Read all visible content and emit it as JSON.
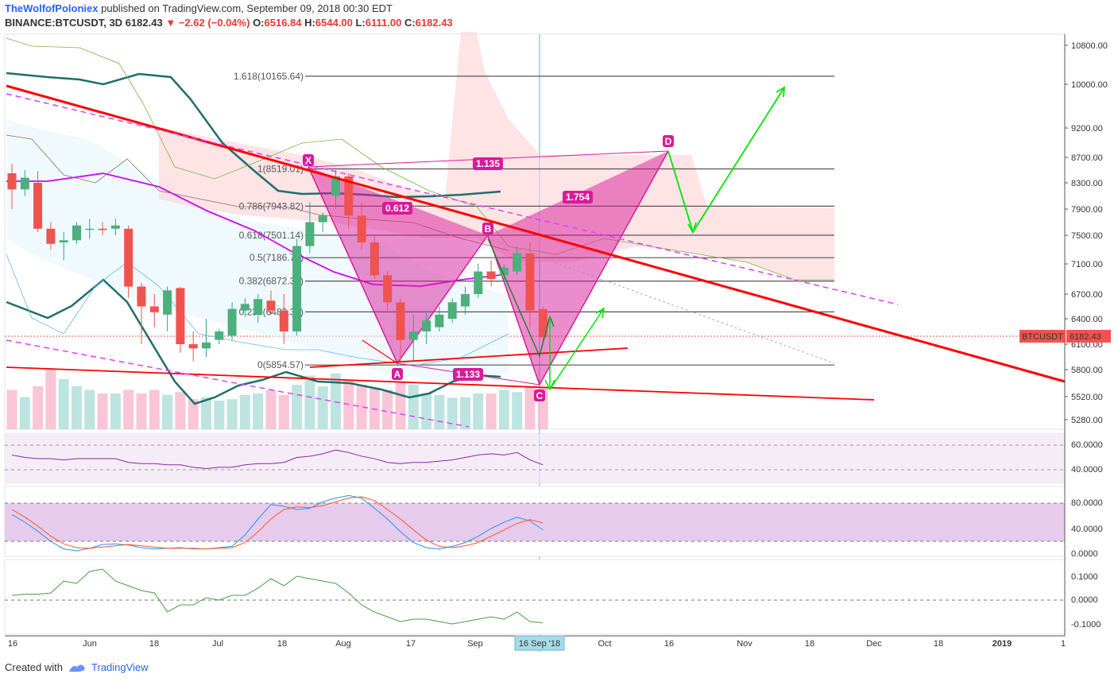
{
  "header": {
    "author": "TheWolfofPoloniex",
    "published_text": "published on TradingView.com, September 09, 2018 00:30 EDT",
    "symbol": "BINANCE:BTCUSDT, 3D",
    "last": "6182.43",
    "change": "−2.62 (−0.04%)",
    "open_label": "O:",
    "open": "6516.84",
    "high_label": "H:",
    "high": "6544.00",
    "low_label": "L:",
    "low": "6111.00",
    "close_label": "C:",
    "close": "6182.43"
  },
  "footer": {
    "created_with": "Created with",
    "brand": "TradingView"
  },
  "colors": {
    "up": "#26a69a",
    "down": "#ef5350",
    "pattern": "#d81b9a",
    "trend": "#ff0000",
    "arrow": "#00e600"
  },
  "chart_data": {
    "type": "candlestick",
    "price_ticks": [
      "10800.00",
      "10000.00",
      "9200.00",
      "8700.00",
      "8300.00",
      "7900.00",
      "7500.00",
      "7100.00",
      "6700.00",
      "6400.00",
      "6100.00",
      "5800.00",
      "5520.00",
      "5280.00"
    ],
    "price_tick_values": [
      10800,
      10000,
      9200,
      8700,
      8300,
      7900,
      7500,
      7100,
      6700,
      6400,
      6100,
      5800,
      5520,
      5280
    ],
    "current_price_label": "BTCUSDT",
    "current_price": "6182.43",
    "x_ticks": [
      "16",
      "Jun",
      "18",
      "Jul",
      "18",
      "Aug",
      "17",
      "Sep",
      "Oct",
      "16",
      "Nov",
      "18",
      "Dec",
      "18",
      "2019",
      "1"
    ],
    "x_cursor_label": "16 Sep '18",
    "candles": [
      {
        "o": 8450,
        "h": 8600,
        "l": 7900,
        "c": 8200
      },
      {
        "o": 8200,
        "h": 8500,
        "l": 8100,
        "c": 8380
      },
      {
        "o": 8300,
        "h": 8480,
        "l": 7550,
        "c": 7600
      },
      {
        "o": 7600,
        "h": 7700,
        "l": 7300,
        "c": 7380
      },
      {
        "o": 7400,
        "h": 7550,
        "l": 7150,
        "c": 7430
      },
      {
        "o": 7430,
        "h": 7700,
        "l": 7380,
        "c": 7650
      },
      {
        "o": 7600,
        "h": 7750,
        "l": 7450,
        "c": 7600
      },
      {
        "o": 7600,
        "h": 7700,
        "l": 7500,
        "c": 7580
      },
      {
        "o": 7600,
        "h": 7750,
        "l": 7500,
        "c": 7650
      },
      {
        "o": 7600,
        "h": 7650,
        "l": 6650,
        "c": 6800
      },
      {
        "o": 6800,
        "h": 6850,
        "l": 6100,
        "c": 6550
      },
      {
        "o": 6550,
        "h": 6700,
        "l": 6300,
        "c": 6480
      },
      {
        "o": 6450,
        "h": 6800,
        "l": 6250,
        "c": 6750
      },
      {
        "o": 6780,
        "h": 6800,
        "l": 6000,
        "c": 6100
      },
      {
        "o": 6100,
        "h": 6250,
        "l": 5900,
        "c": 6050
      },
      {
        "o": 6050,
        "h": 6400,
        "l": 5950,
        "c": 6120
      },
      {
        "o": 6150,
        "h": 6280,
        "l": 6100,
        "c": 6250
      },
      {
        "o": 6200,
        "h": 6600,
        "l": 6150,
        "c": 6520
      },
      {
        "o": 6500,
        "h": 6650,
        "l": 6420,
        "c": 6580
      },
      {
        "o": 6450,
        "h": 6700,
        "l": 6350,
        "c": 6640
      },
      {
        "o": 6620,
        "h": 6750,
        "l": 6450,
        "c": 6500
      },
      {
        "o": 6500,
        "h": 6700,
        "l": 6100,
        "c": 6250
      },
      {
        "o": 6250,
        "h": 7450,
        "l": 6200,
        "c": 7350
      },
      {
        "o": 7350,
        "h": 8000,
        "l": 7250,
        "c": 7700
      },
      {
        "o": 7700,
        "h": 7850,
        "l": 7550,
        "c": 7800
      },
      {
        "o": 8100,
        "h": 8500,
        "l": 7900,
        "c": 8400
      },
      {
        "o": 8400,
        "h": 8450,
        "l": 7600,
        "c": 7800
      },
      {
        "o": 7800,
        "h": 8000,
        "l": 7300,
        "c": 7400
      },
      {
        "o": 7400,
        "h": 7500,
        "l": 6900,
        "c": 6950
      },
      {
        "o": 6950,
        "h": 7000,
        "l": 6500,
        "c": 6600
      },
      {
        "o": 6600,
        "h": 6650,
        "l": 5900,
        "c": 6150
      },
      {
        "o": 6150,
        "h": 6450,
        "l": 5900,
        "c": 6250
      },
      {
        "o": 6250,
        "h": 6500,
        "l": 6100,
        "c": 6380
      },
      {
        "o": 6300,
        "h": 6550,
        "l": 6250,
        "c": 6450
      },
      {
        "o": 6400,
        "h": 6650,
        "l": 6350,
        "c": 6600
      },
      {
        "o": 6550,
        "h": 6800,
        "l": 6450,
        "c": 6700
      },
      {
        "o": 6700,
        "h": 7100,
        "l": 6650,
        "c": 7000
      },
      {
        "o": 7000,
        "h": 7150,
        "l": 6800,
        "c": 6900
      },
      {
        "o": 6950,
        "h": 7100,
        "l": 6850,
        "c": 7050
      },
      {
        "o": 7000,
        "h": 7350,
        "l": 6950,
        "c": 7250
      },
      {
        "o": 7250,
        "h": 7400,
        "l": 6300,
        "c": 6500
      },
      {
        "o": 6516.84,
        "h": 6544,
        "l": 6111,
        "c": 6182.43
      }
    ],
    "fib_levels": [
      {
        "label": "1.618(10165.64)",
        "price": 10165.64
      },
      {
        "label": "1(8519.01)",
        "price": 8519.01
      },
      {
        "label": "0.786(7943.82)",
        "price": 7943.82
      },
      {
        "label": "0.618(7501.14)",
        "price": 7501.14
      },
      {
        "label": "0.5(7186.79)",
        "price": 7186.79
      },
      {
        "label": "0.382(6872.38)",
        "price": 6872.38
      },
      {
        "label": "0.236(6483.38)",
        "price": 6483.38
      },
      {
        "label": "0(5854.57)",
        "price": 5854.57
      }
    ],
    "pattern_points": {
      "X": "X",
      "A": "A",
      "B": "B",
      "C": "C",
      "D": "D"
    },
    "pattern_ratios": {
      "xb": "0.612",
      "ac": "1.133",
      "bd": "1.754",
      "xd": "1.135"
    },
    "rsi_ticks": [
      "60.0000",
      "40.0000"
    ],
    "stoch_ticks": [
      "80.0000",
      "40.0000",
      "0.0000"
    ],
    "osc_ticks": [
      "0.1000",
      "0.0000",
      "-0.1000"
    ],
    "rsi": [
      52,
      50,
      49,
      49,
      48,
      49,
      49,
      49,
      49,
      46,
      45,
      45,
      44,
      44,
      42,
      41,
      42,
      42,
      44,
      45,
      45,
      46,
      50,
      51,
      53,
      56,
      54,
      51,
      49,
      46,
      45,
      46,
      46,
      47,
      48,
      50,
      52,
      53,
      52,
      54,
      48,
      44
    ],
    "stoch_k": [
      62,
      50,
      36,
      20,
      8,
      5,
      9,
      15,
      16,
      14,
      10,
      8,
      9,
      10,
      8,
      8,
      10,
      12,
      30,
      55,
      78,
      75,
      70,
      72,
      82,
      88,
      92,
      88,
      72,
      55,
      35,
      18,
      10,
      8,
      12,
      18,
      28,
      40,
      50,
      58,
      52,
      38
    ],
    "stoch_d": [
      70,
      58,
      44,
      28,
      16,
      10,
      9,
      11,
      13,
      15,
      13,
      11,
      9,
      9,
      9,
      8,
      9,
      10,
      18,
      35,
      55,
      70,
      74,
      73,
      76,
      82,
      88,
      90,
      84,
      70,
      55,
      38,
      22,
      12,
      10,
      13,
      18,
      28,
      38,
      48,
      54,
      49
    ],
    "osc": [
      0.02,
      0.025,
      0.025,
      0.03,
      0.08,
      0.07,
      0.12,
      0.13,
      0.08,
      0.06,
      0.04,
      0.03,
      -0.05,
      -0.02,
      -0.02,
      0.01,
      0.0,
      0.02,
      0.02,
      0.05,
      0.09,
      0.06,
      0.1,
      0.09,
      0.08,
      0.07,
      0.03,
      -0.02,
      -0.05,
      -0.07,
      -0.09,
      -0.08,
      -0.08,
      -0.09,
      -0.1,
      -0.09,
      -0.08,
      -0.07,
      -0.08,
      -0.05,
      -0.09,
      -0.095
    ],
    "volume": [
      0.55,
      0.45,
      0.6,
      0.85,
      0.7,
      0.6,
      0.55,
      0.5,
      0.5,
      0.55,
      0.5,
      0.55,
      0.48,
      0.52,
      0.42,
      0.45,
      0.4,
      0.42,
      0.48,
      0.5,
      0.55,
      0.48,
      0.62,
      0.75,
      0.6,
      0.78,
      0.68,
      0.62,
      0.58,
      0.55,
      0.65,
      0.62,
      0.5,
      0.48,
      0.44,
      0.45,
      0.5,
      0.5,
      0.55,
      0.52,
      0.6,
      0.58
    ]
  }
}
